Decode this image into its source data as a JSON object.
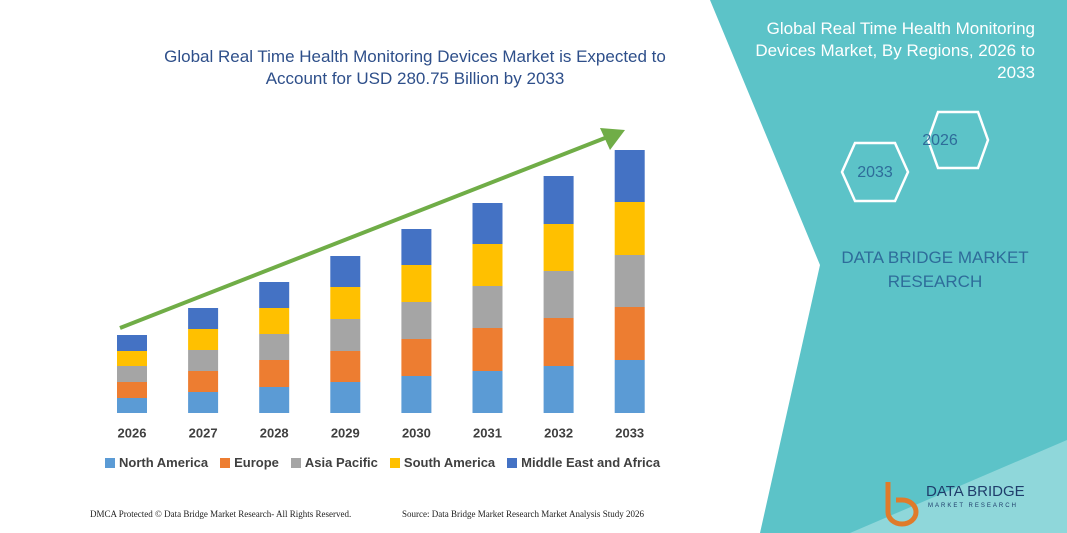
{
  "chart_data": {
    "type": "bar",
    "stacked": true,
    "title": "Global Real Time Health Monitoring Devices Market is Expected to Account for USD 280.75 Billion by 2033",
    "categories": [
      "2026",
      "2027",
      "2028",
      "2029",
      "2030",
      "2031",
      "2032",
      "2033"
    ],
    "series": [
      {
        "name": "North America",
        "color": "#5b9bd5",
        "values": [
          15,
          21,
          26,
          31,
          37,
          42,
          47,
          53
        ]
      },
      {
        "name": "Europe",
        "color": "#ed7d31",
        "values": [
          16,
          21,
          27,
          31,
          37,
          43,
          48,
          53
        ]
      },
      {
        "name": "Asia Pacific",
        "color": "#a5a5a5",
        "values": [
          16,
          21,
          26,
          32,
          37,
          42,
          47,
          52
        ]
      },
      {
        "name": "South America",
        "color": "#ffc000",
        "values": [
          15,
          21,
          26,
          32,
          37,
          42,
          47,
          53
        ]
      },
      {
        "name": "Middle East and Africa",
        "color": "#4472c4",
        "values": [
          16,
          21,
          26,
          31,
          36,
          41,
          48,
          52
        ]
      }
    ]
  },
  "panel": {
    "title": "Global Real Time Health Monitoring Devices Market, By Regions, 2026 to 2033",
    "hexagons": [
      "2026",
      "2033"
    ],
    "brand": "DATA BRIDGE MARKET RESEARCH"
  },
  "footer": {
    "left": "DMCA Protected © Data Bridge Market Research- All Rights Reserved.",
    "right": "Source: Data Bridge Market Research Market Analysis Study 2026"
  },
  "logo": {
    "name": "DATA BRIDGE",
    "tagline": "MARKET RESEARCH"
  }
}
